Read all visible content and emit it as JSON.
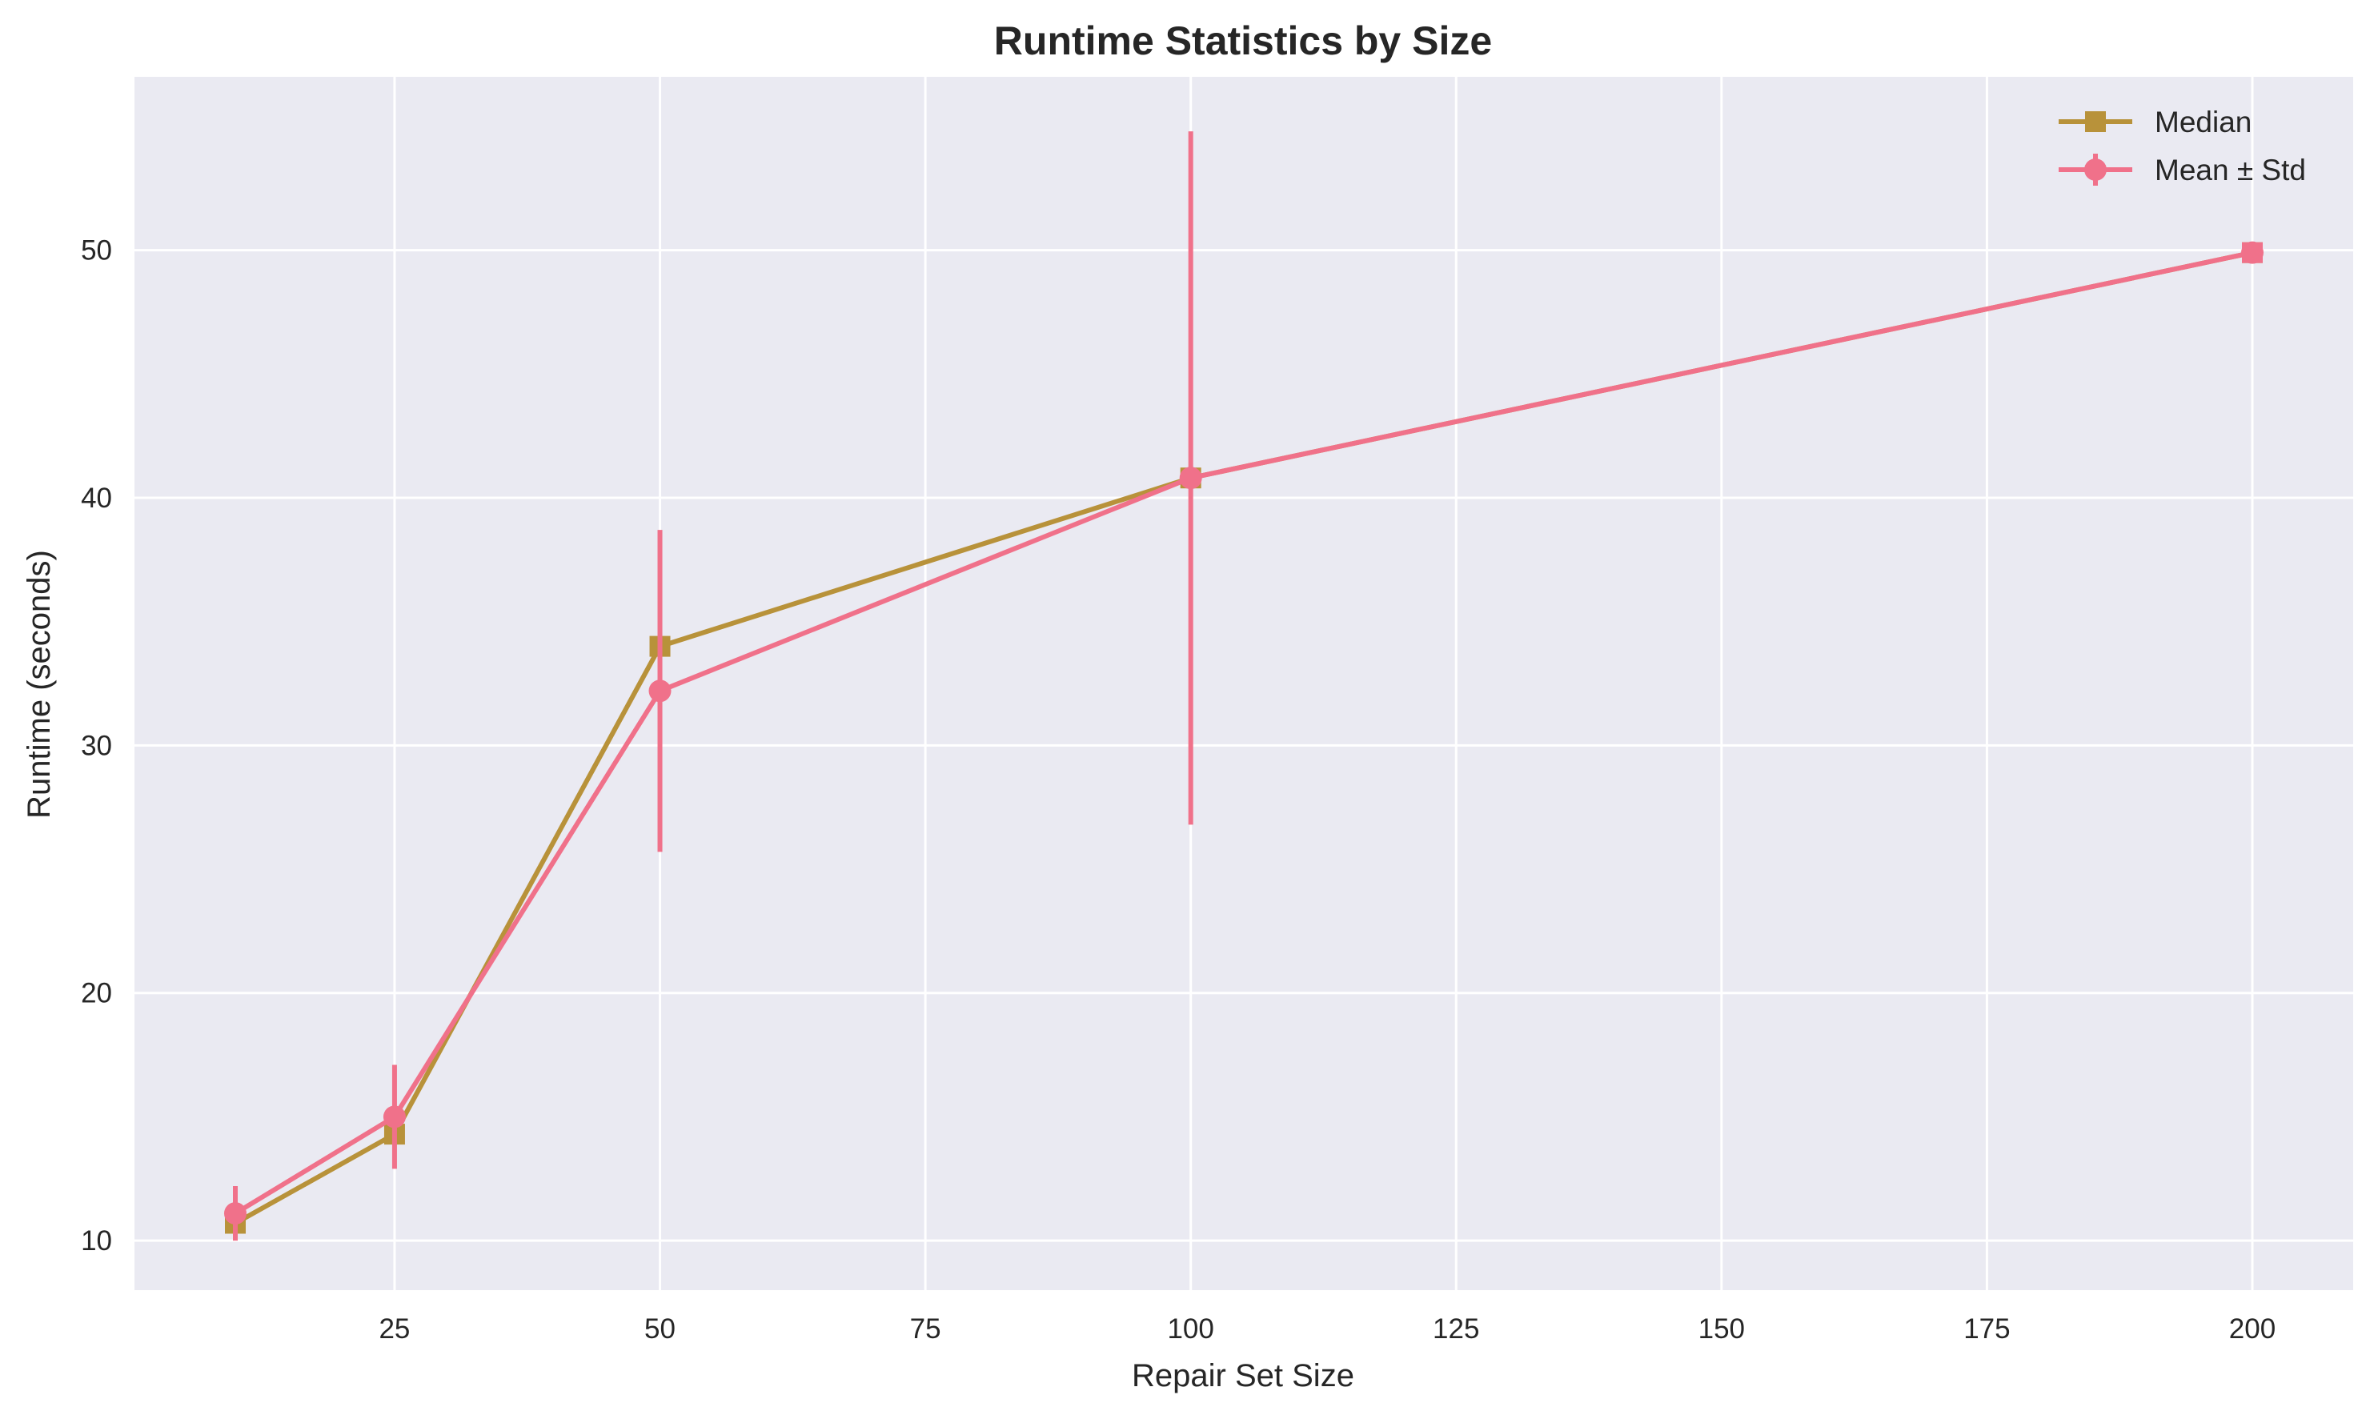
{
  "chart_data": {
    "type": "line",
    "title": "Runtime Statistics by Size",
    "xlabel": "Repair Set Size",
    "ylabel": "Runtime (seconds)",
    "xlim": [
      0.5,
      209.5
    ],
    "ylim": [
      8,
      57
    ],
    "xticks": [
      25,
      50,
      75,
      100,
      125,
      150,
      175,
      200
    ],
    "yticks": [
      10,
      20,
      30,
      40,
      50
    ],
    "grid": true,
    "legend_position": "top-right",
    "x": [
      10,
      25,
      50,
      100,
      200
    ],
    "series": [
      {
        "name": "Median",
        "marker": "square",
        "color": "#b8923a",
        "values": [
          10.7,
          14.3,
          34.0,
          40.8,
          49.9
        ]
      },
      {
        "name": "Mean ± Std",
        "marker": "circle",
        "color": "#f0718a",
        "values": [
          11.1,
          15.0,
          32.2,
          40.8,
          49.9
        ],
        "std": [
          1.1,
          2.1,
          6.5,
          14.0,
          0.0
        ]
      }
    ],
    "colors": {
      "plot_background": "#eaeaf2",
      "grid": "#ffffff",
      "text": "#262626"
    }
  }
}
